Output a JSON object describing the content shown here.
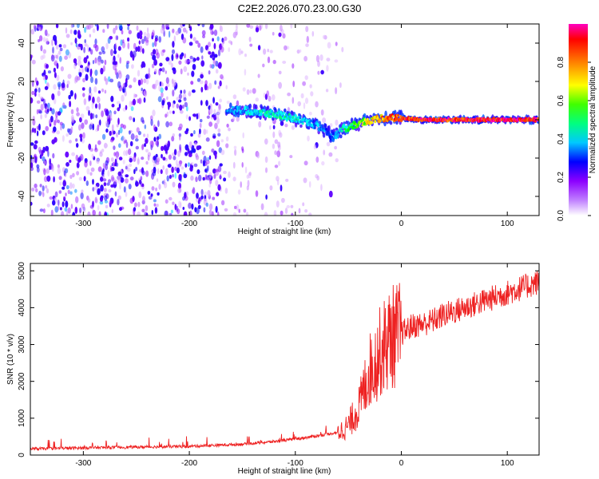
{
  "title": "C2E2.2026.070.23.00.G30",
  "chart_data": [
    {
      "type": "heatmap",
      "xlabel": "Height of straight line (km)",
      "ylabel": "Frequency (Hz)",
      "xlim": [
        -350,
        130
      ],
      "ylim": [
        -50,
        50
      ],
      "xticks": [
        -300,
        -200,
        -100,
        0,
        100
      ],
      "xtick_labels": [
        "-300",
        "-200",
        "-100",
        "0",
        "100"
      ],
      "yticks": [
        -40,
        -20,
        0,
        20,
        40
      ],
      "ytick_labels": [
        "-40",
        "-20",
        "0",
        "20",
        "40"
      ],
      "colorbar": {
        "label": "Normalized spectral amplitude",
        "range": [
          0.0,
          1.0
        ],
        "ticks": [
          0.0,
          0.2,
          0.4,
          0.6,
          0.8
        ],
        "tick_labels": [
          "0.0",
          "0.2",
          "0.4",
          "0.6",
          "0.8"
        ],
        "colormap": [
          "#ffffff",
          "#8c00ff",
          "#0000ff",
          "#00ffff",
          "#00ff00",
          "#ffff00",
          "#ff8000",
          "#ff0000",
          "#ff00c0"
        ]
      },
      "ridge": {
        "x": [
          -165,
          -150,
          -130,
          -110,
          -90,
          -75,
          -65,
          -55,
          -45,
          -35,
          -25,
          -10,
          0,
          20,
          60,
          100,
          130
        ],
        "y": [
          5,
          5,
          4,
          2,
          -1,
          -4,
          -9,
          -5,
          -3,
          -1,
          0,
          1,
          1,
          0,
          0,
          0,
          0
        ],
        "amplitude": [
          0.35,
          0.38,
          0.42,
          0.45,
          0.4,
          0.35,
          0.3,
          0.45,
          0.55,
          0.65,
          0.75,
          0.85,
          0.9,
          0.95,
          0.97,
          0.98,
          0.98
        ]
      },
      "noise_regions": [
        {
          "x_range": [
            -350,
            -170
          ],
          "density": "high",
          "amplitude": 0.2
        },
        {
          "x_range": [
            -170,
            -100
          ],
          "density": "medium",
          "amplitude": 0.08
        },
        {
          "x_range": [
            -100,
            -55
          ],
          "density": "low",
          "amplitude": 0.05
        }
      ]
    },
    {
      "type": "line",
      "series": [
        {
          "name": "SNR",
          "color": "#ee2222",
          "x": [
            -350,
            -300,
            -250,
            -200,
            -150,
            -120,
            -100,
            -80,
            -60,
            -50,
            -40,
            -35,
            -30,
            -25,
            -20,
            -15,
            -10,
            -5,
            0,
            10,
            20,
            30,
            40,
            60,
            80,
            100,
            120,
            130
          ],
          "y": [
            150,
            180,
            200,
            220,
            280,
            350,
            420,
            500,
            600,
            800,
            1300,
            1800,
            2300,
            2500,
            2800,
            3000,
            3200,
            3250,
            3300,
            3500,
            3550,
            3650,
            3800,
            4000,
            4200,
            4400,
            4600,
            4700
          ]
        }
      ],
      "xlabel": "Height of straight line (km)",
      "ylabel": "SNR (10 * v/v)",
      "xlim": [
        -350,
        130
      ],
      "ylim": [
        0,
        5200
      ],
      "xticks": [
        -300,
        -200,
        -100,
        0,
        100
      ],
      "xtick_labels": [
        "-300",
        "-200",
        "-100",
        "0",
        "100"
      ],
      "yticks": [
        0,
        1000,
        2000,
        3000,
        4000,
        5000
      ],
      "ytick_labels": [
        "0",
        "1000",
        "2000",
        "3000",
        "4000",
        "5000"
      ]
    }
  ]
}
